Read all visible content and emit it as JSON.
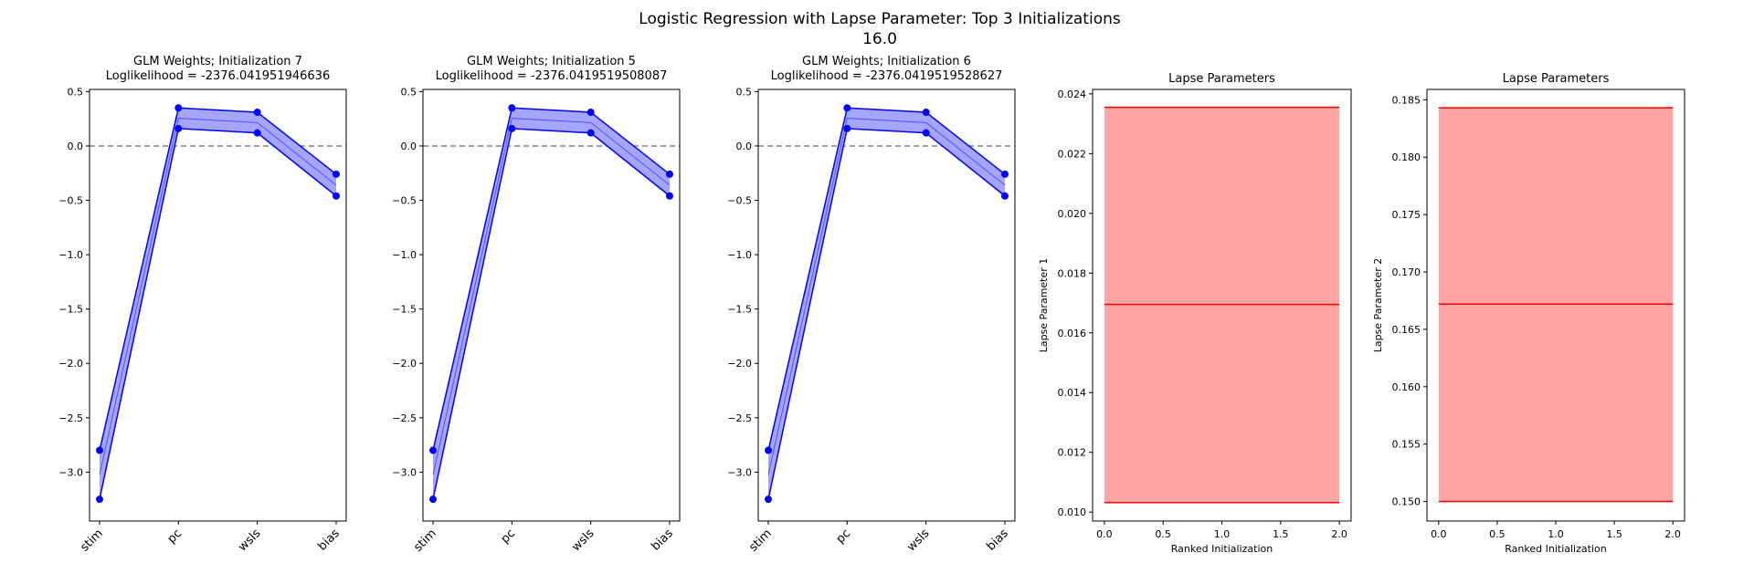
{
  "figure": {
    "title": "Logistic Regression with Lapse Parameter: Top 3 Initializations",
    "subtitle": "16.0"
  },
  "colors": {
    "weights_line": "#0000ff",
    "weights_fill": "#a5a5ff",
    "lapse_line": "#ff0000",
    "lapse_fill": "#ffa5a5",
    "zero_line": "#808080"
  },
  "chart_data": [
    {
      "type": "line",
      "title": "GLM Weights; Initialization 7",
      "subtitle": "Loglikelihood = -2376.041951946636",
      "categories": [
        "stim",
        "pc",
        "wsls",
        "bias"
      ],
      "series": [
        {
          "values": [
            -2.8,
            0.35,
            0.31,
            -0.26
          ]
        },
        {
          "values": [
            -3.25,
            0.16,
            0.12,
            -0.46
          ]
        }
      ],
      "fill_between": true,
      "reference_line": 0,
      "ylim": [
        -3.45,
        0.52
      ],
      "yticks": [
        -3.0,
        -2.5,
        -2.0,
        -1.5,
        -1.0,
        -0.5,
        0.0,
        0.5
      ],
      "ytick_labels": [
        "−3.0",
        "−2.5",
        "−2.0",
        "−1.5",
        "−1.0",
        "−0.5",
        "0.0",
        "0.5"
      ]
    },
    {
      "type": "line",
      "title": "GLM Weights; Initialization 5",
      "subtitle": "Loglikelihood = -2376.0419519508087",
      "categories": [
        "stim",
        "pc",
        "wsls",
        "bias"
      ],
      "series": [
        {
          "values": [
            -2.8,
            0.35,
            0.31,
            -0.26
          ]
        },
        {
          "values": [
            -3.25,
            0.16,
            0.12,
            -0.46
          ]
        }
      ],
      "fill_between": true,
      "reference_line": 0,
      "ylim": [
        -3.45,
        0.52
      ],
      "yticks": [
        -3.0,
        -2.5,
        -2.0,
        -1.5,
        -1.0,
        -0.5,
        0.0,
        0.5
      ],
      "ytick_labels": [
        "−3.0",
        "−2.5",
        "−2.0",
        "−1.5",
        "−1.0",
        "−0.5",
        "0.0",
        "0.5"
      ]
    },
    {
      "type": "line",
      "title": "GLM Weights; Initialization 6",
      "subtitle": "Loglikelihood = -2376.0419519528627",
      "categories": [
        "stim",
        "pc",
        "wsls",
        "bias"
      ],
      "series": [
        {
          "values": [
            -2.8,
            0.35,
            0.31,
            -0.26
          ]
        },
        {
          "values": [
            -3.25,
            0.16,
            0.12,
            -0.46
          ]
        }
      ],
      "fill_between": true,
      "reference_line": 0,
      "ylim": [
        -3.45,
        0.52
      ],
      "yticks": [
        -3.0,
        -2.5,
        -2.0,
        -1.5,
        -1.0,
        -0.5,
        0.0,
        0.5
      ],
      "ytick_labels": [
        "−3.0",
        "−2.5",
        "−2.0",
        "−1.5",
        "−1.0",
        "−0.5",
        "0.0",
        "0.5"
      ]
    },
    {
      "type": "area",
      "title": "Lapse Parameters",
      "xlabel": "Ranked Initialization",
      "ylabel": "Lapse Parameter 1",
      "x": [
        0,
        1,
        2
      ],
      "series": [
        {
          "values": [
            0.02355,
            0.02355,
            0.02355
          ]
        },
        {
          "values": [
            0.01695,
            0.01695,
            0.01695
          ]
        },
        {
          "values": [
            0.01032,
            0.01032,
            0.01032
          ]
        }
      ],
      "band": [
        0.01032,
        0.02355
      ],
      "xlim": [
        -0.1,
        2.1
      ],
      "ylim": [
        0.0097,
        0.02415
      ],
      "xticks": [
        0.0,
        0.5,
        1.0,
        1.5,
        2.0
      ],
      "xtick_labels": [
        "0.0",
        "0.5",
        "1.0",
        "1.5",
        "2.0"
      ],
      "yticks": [
        0.01,
        0.012,
        0.014,
        0.016,
        0.018,
        0.02,
        0.022,
        0.024
      ],
      "ytick_labels": [
        "0.010",
        "0.012",
        "0.014",
        "0.016",
        "0.018",
        "0.020",
        "0.022",
        "0.024"
      ]
    },
    {
      "type": "area",
      "title": "Lapse Parameters",
      "xlabel": "Ranked Initialization",
      "ylabel": "Lapse Parameter 2",
      "x": [
        0,
        1,
        2
      ],
      "series": [
        {
          "values": [
            0.1843,
            0.1843,
            0.1843
          ]
        },
        {
          "values": [
            0.1672,
            0.1672,
            0.1672
          ]
        },
        {
          "values": [
            0.15,
            0.15,
            0.15
          ]
        }
      ],
      "band": [
        0.15,
        0.1843
      ],
      "xlim": [
        -0.1,
        2.1
      ],
      "ylim": [
        0.1483,
        0.1859
      ],
      "xticks": [
        0.0,
        0.5,
        1.0,
        1.5,
        2.0
      ],
      "xtick_labels": [
        "0.0",
        "0.5",
        "1.0",
        "1.5",
        "2.0"
      ],
      "yticks": [
        0.15,
        0.155,
        0.16,
        0.165,
        0.17,
        0.175,
        0.18,
        0.185
      ],
      "ytick_labels": [
        "0.150",
        "0.155",
        "0.160",
        "0.165",
        "0.170",
        "0.175",
        "0.180",
        "0.185"
      ]
    }
  ]
}
